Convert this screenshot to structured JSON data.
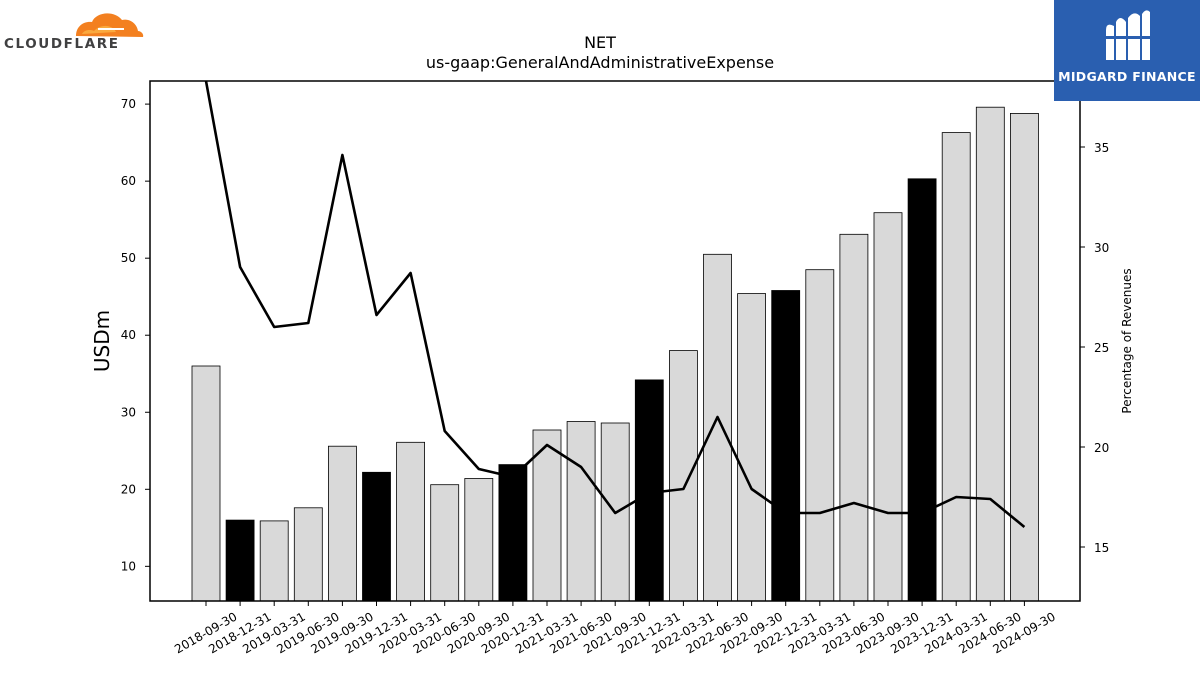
{
  "logos": {
    "left": {
      "name": "cloudflare-logo",
      "text": "CLOUDFLARE",
      "color": "#f38020"
    },
    "right": {
      "name": "midgard-finance-logo",
      "text": "MIDGARD FINANCE",
      "color": "#2a5fb0"
    }
  },
  "chart_data": {
    "type": "bar",
    "title": "NET",
    "subtitle": "us-gaap:GeneralAndAdministrativeExpense",
    "ylabel": "USDm",
    "y2label": "Percentage of Revenues",
    "ylim": [
      5.5,
      73
    ],
    "y2lim": [
      12.3,
      38.3
    ],
    "yticks": [
      10,
      20,
      30,
      40,
      50,
      60,
      70
    ],
    "y2ticks": [
      15,
      20,
      25,
      30,
      35
    ],
    "grid": false,
    "bar_colors": {
      "quarter": "#d9d9d9",
      "year_end": "#000000"
    },
    "categories": [
      "2018-09-30",
      "2018-12-31",
      "2019-03-31",
      "2019-06-30",
      "2019-09-30",
      "2019-12-31",
      "2020-03-31",
      "2020-06-30",
      "2020-09-30",
      "2020-12-31",
      "2021-03-31",
      "2021-06-30",
      "2021-09-30",
      "2021-12-31",
      "2022-03-31",
      "2022-06-30",
      "2022-09-30",
      "2022-12-31",
      "2023-03-31",
      "2023-06-30",
      "2023-09-30",
      "2023-12-31",
      "2024-03-31",
      "2024-06-30",
      "2024-09-30"
    ],
    "series": [
      {
        "kind": "bar",
        "values": [
          36.0,
          16.0,
          15.9,
          17.6,
          25.6,
          22.2,
          26.1,
          20.6,
          21.4,
          23.2,
          27.7,
          28.8,
          28.6,
          34.2,
          38.0,
          50.5,
          45.4,
          45.8,
          48.5,
          53.1,
          55.9,
          60.3,
          66.3,
          69.6,
          68.8
        ],
        "year_end": [
          false,
          true,
          false,
          false,
          false,
          true,
          false,
          false,
          false,
          true,
          false,
          false,
          false,
          true,
          false,
          false,
          false,
          true,
          false,
          false,
          false,
          true,
          false,
          false,
          false
        ]
      },
      {
        "kind": "line",
        "axis": "right",
        "values": [
          45.0,
          29.0,
          26.0,
          26.2,
          34.6,
          26.6,
          28.7,
          20.8,
          18.9,
          18.5,
          20.1,
          19.0,
          16.7,
          17.7,
          17.9,
          21.5,
          17.9,
          16.7,
          16.7,
          17.2,
          16.7,
          16.7,
          17.5,
          17.4,
          16.0
        ]
      }
    ]
  }
}
